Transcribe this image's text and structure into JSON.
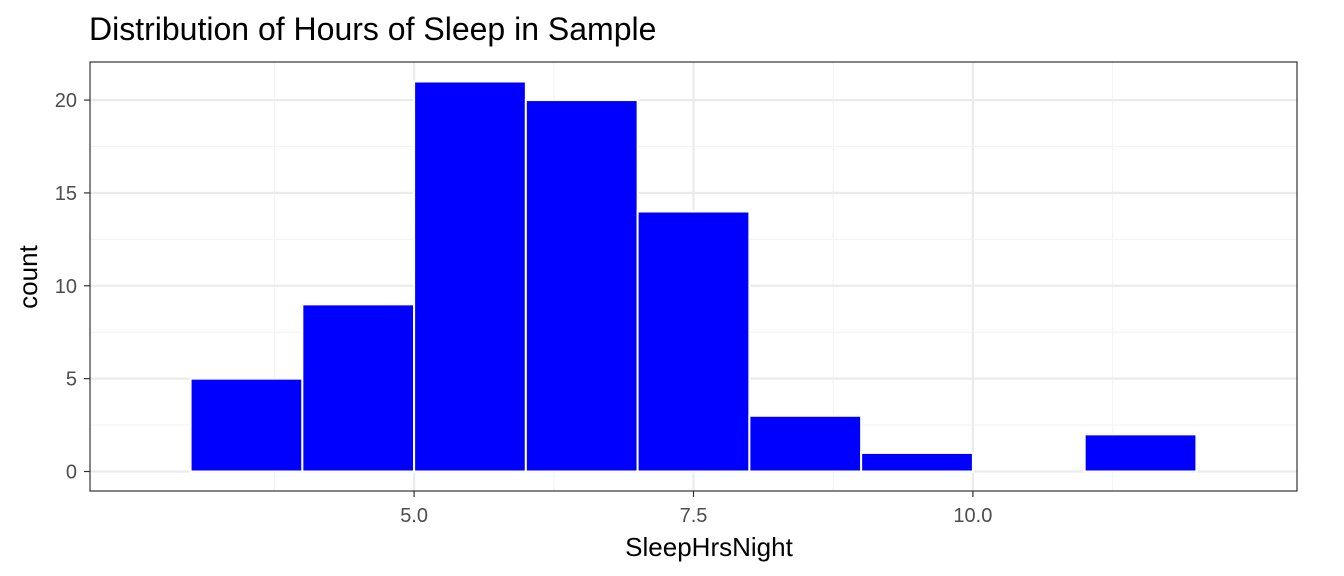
{
  "chart_data": {
    "type": "bar",
    "title": "Distribution of Hours of Sleep in Sample",
    "xlabel": "SleepHrsNight",
    "ylabel": "count",
    "bins": [
      {
        "start": 3,
        "end": 4,
        "count": 5
      },
      {
        "start": 4,
        "end": 5,
        "count": 9
      },
      {
        "start": 5,
        "end": 6,
        "count": 21
      },
      {
        "start": 6,
        "end": 7,
        "count": 20
      },
      {
        "start": 7,
        "end": 8,
        "count": 14
      },
      {
        "start": 8,
        "end": 9,
        "count": 3
      },
      {
        "start": 9,
        "end": 10,
        "count": 1
      },
      {
        "start": 10,
        "end": 11,
        "count": 0
      },
      {
        "start": 11,
        "end": 12,
        "count": 2
      }
    ],
    "xlim": [
      2.1,
      12.9
    ],
    "ylim": [
      -1.05,
      22.05
    ],
    "xticks": [
      {
        "value": 5,
        "label": "5.0"
      },
      {
        "value": 7.5,
        "label": "7.5"
      },
      {
        "value": 10,
        "label": "10.0"
      }
    ],
    "yticks": [
      {
        "value": 0,
        "label": "0"
      },
      {
        "value": 5,
        "label": "5"
      },
      {
        "value": 10,
        "label": "10"
      },
      {
        "value": 15,
        "label": "15"
      },
      {
        "value": 20,
        "label": "20"
      }
    ],
    "grid": true,
    "bar_color": "#0000ff",
    "bar_outline": "#ffffff",
    "panel_border": "#333333",
    "grid_major_color": "#ebebeb",
    "grid_minor_color": "#f4f4f4"
  }
}
